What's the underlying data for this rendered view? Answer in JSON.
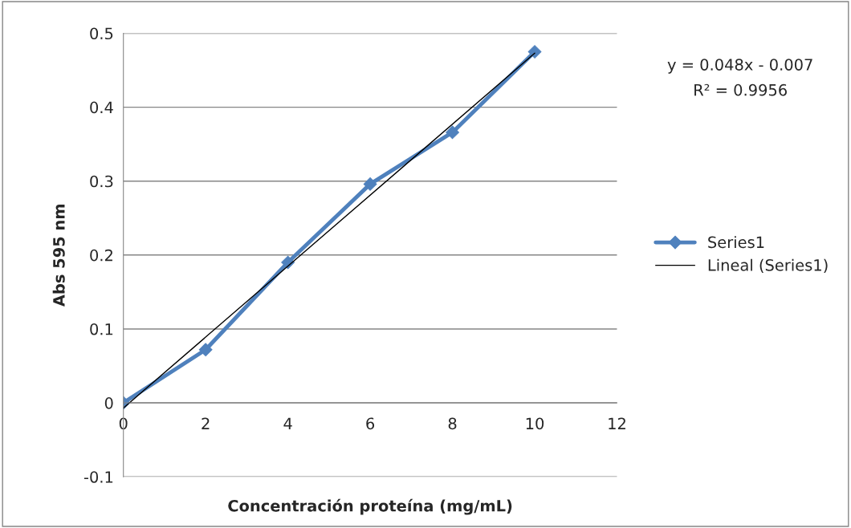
{
  "chart_data": {
    "type": "line",
    "xlabel": "Concentración proteína (mg/mL)",
    "ylabel": "Abs 595 nm",
    "xlim": [
      0,
      12
    ],
    "xticks": [
      0,
      2,
      4,
      6,
      8,
      10,
      12
    ],
    "ylim": [
      -0.1,
      0.5
    ],
    "yticks": [
      -0.1,
      0,
      0.1,
      0.2,
      0.3,
      0.4,
      0.5
    ],
    "grid": "y",
    "legend": "right",
    "series": [
      {
        "name": "Series1",
        "color": "#4f81bd",
        "marker": "diamond",
        "x": [
          0,
          2,
          4,
          6,
          8,
          10
        ],
        "values": [
          0,
          0.072,
          0.19,
          0.296,
          0.366,
          0.475
        ]
      },
      {
        "name": "Lineal (Series1)",
        "color": "#000000",
        "marker": "none",
        "x": [
          0,
          10
        ],
        "values": [
          -0.007,
          0.473
        ]
      }
    ],
    "annotations": [
      "y = 0.048x - 0.007",
      "R² = 0.9956"
    ]
  }
}
